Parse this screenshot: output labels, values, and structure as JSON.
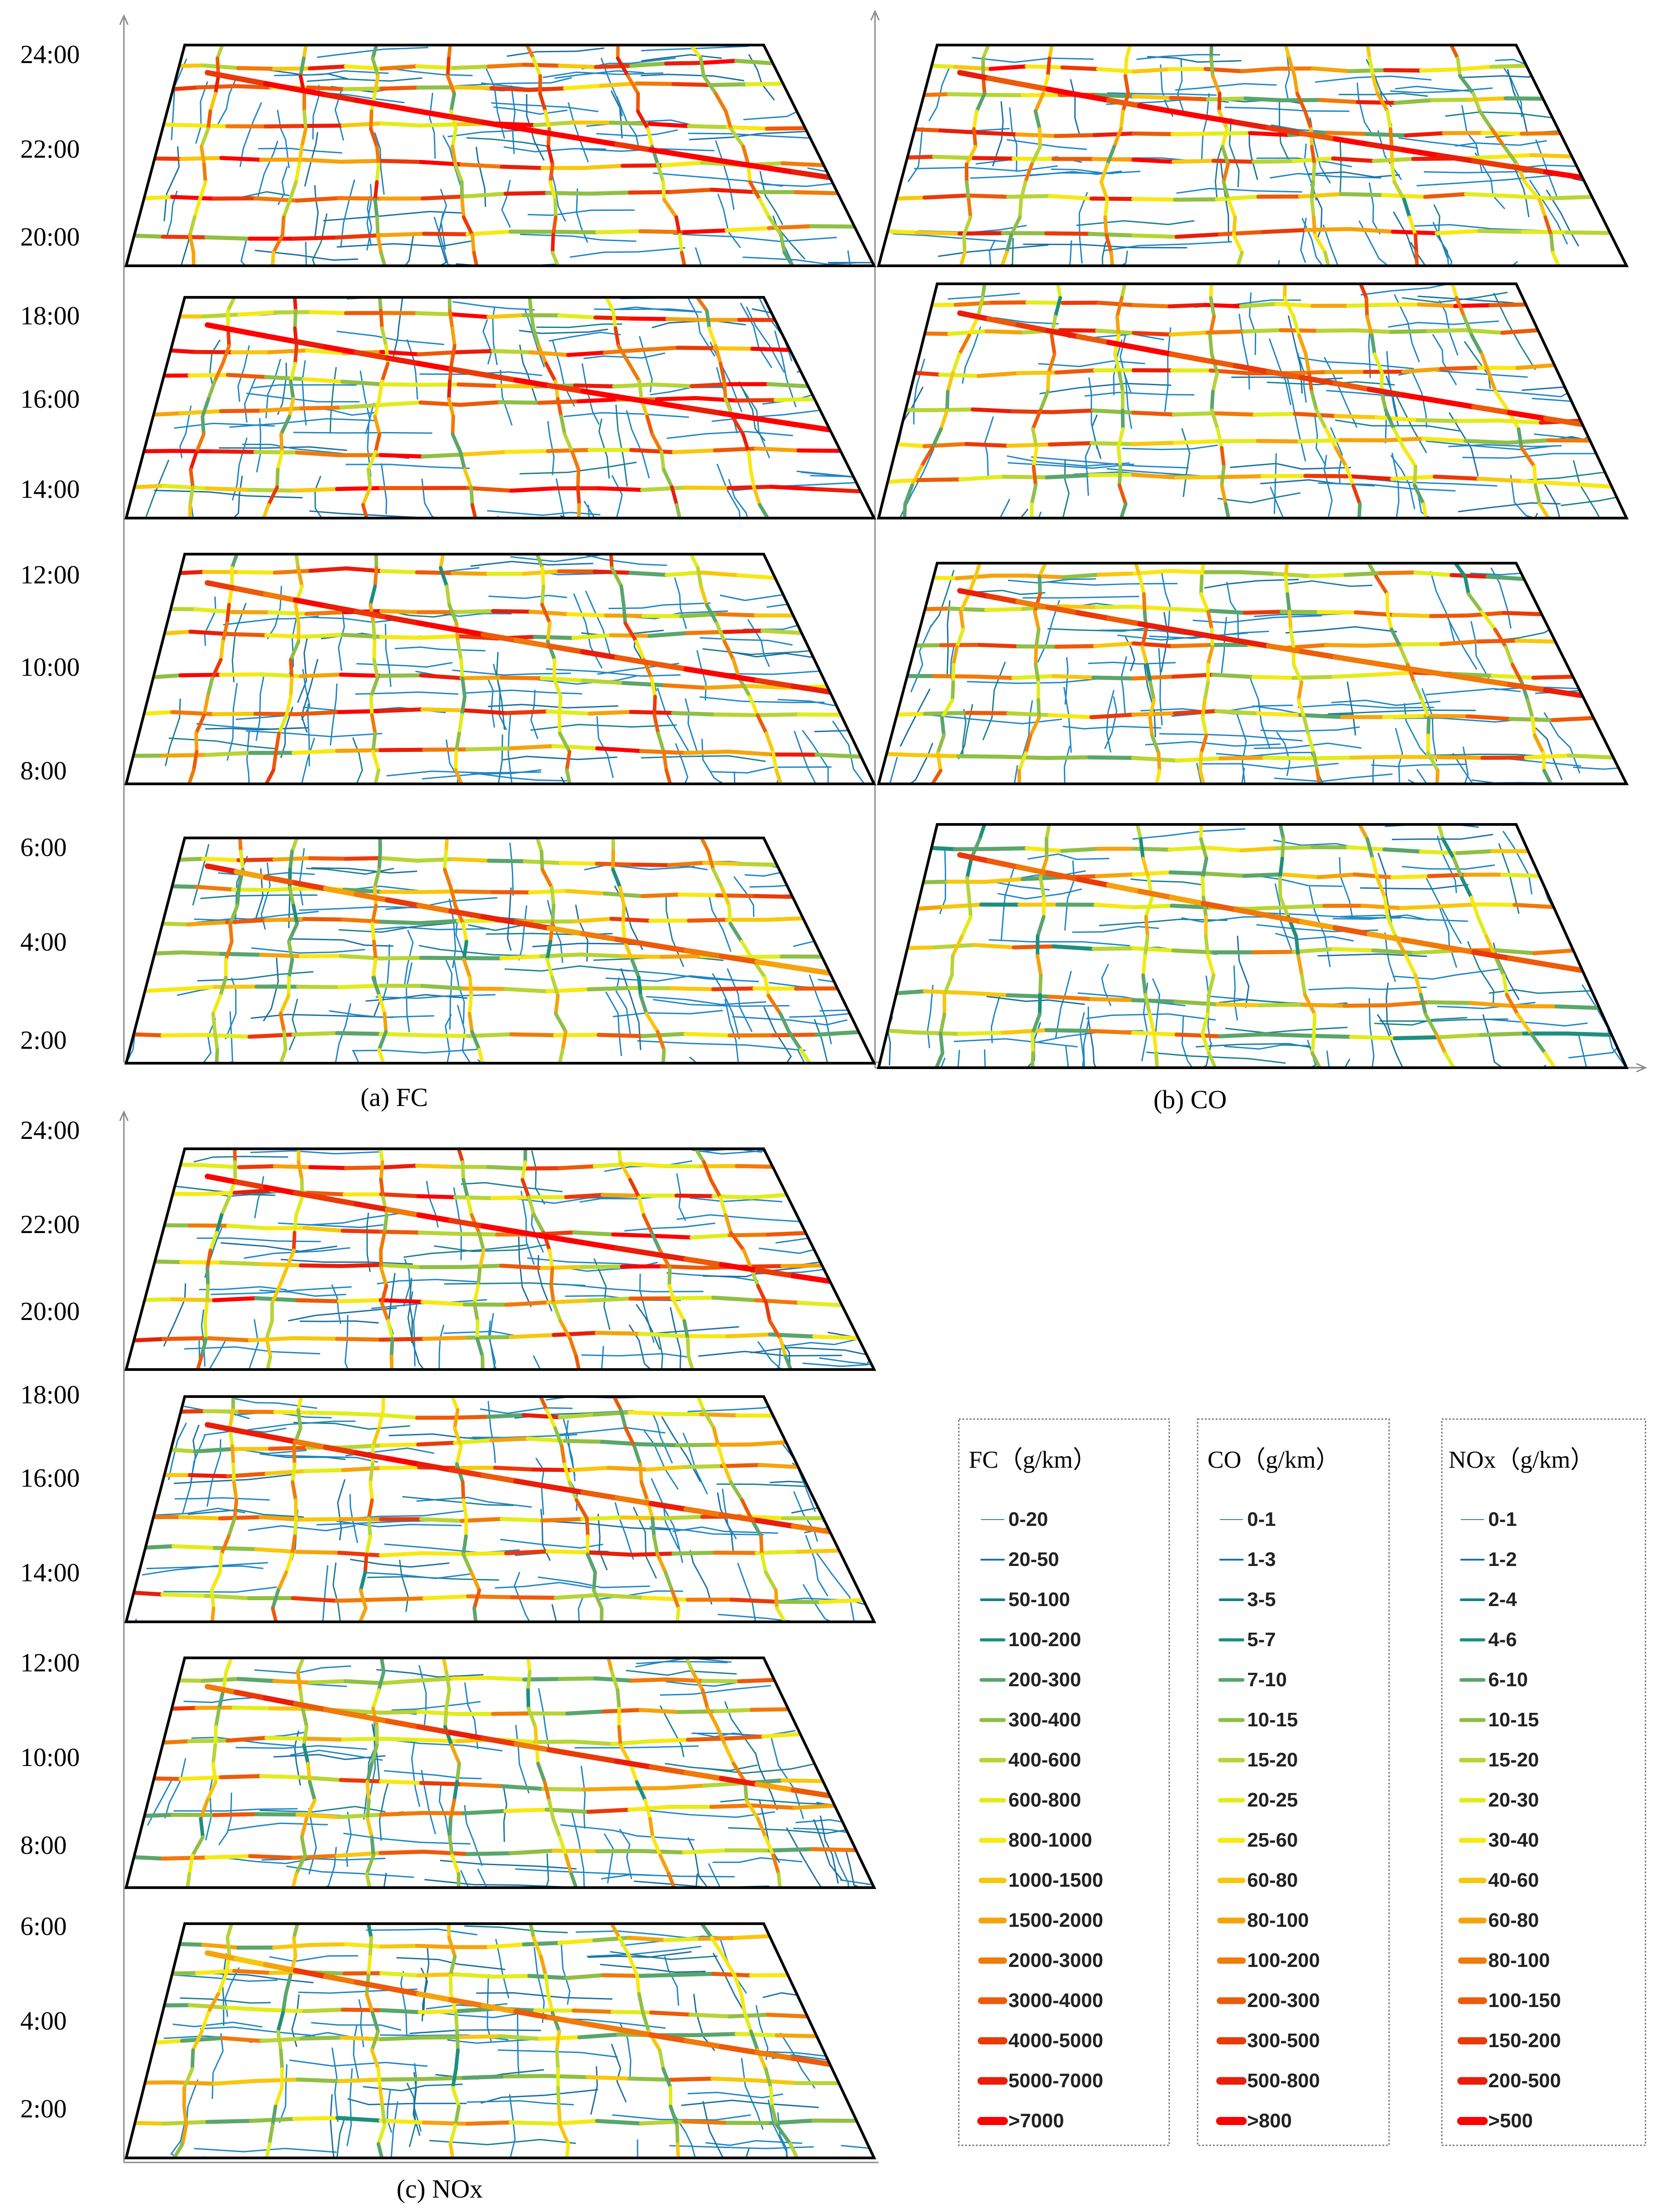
{
  "panels": [
    {
      "id": "a",
      "caption": "(a)    FC",
      "ticks": [
        "24:00",
        "22:00",
        "20:00",
        "18:00",
        "16:00",
        "14:00",
        "12:00",
        "10:00",
        "8:00",
        "6:00",
        "4:00",
        "2:00"
      ],
      "intensity": [
        0.95,
        0.9,
        0.75,
        0.55
      ]
    },
    {
      "id": "b",
      "caption": "(b)    CO",
      "ticks": [],
      "intensity": [
        0.75,
        0.7,
        0.6,
        0.45
      ]
    },
    {
      "id": "c",
      "caption": "(c)    NOx",
      "ticks": [
        "24:00",
        "22:00",
        "20:00",
        "18:00",
        "16:00",
        "14:00",
        "12:00",
        "10:00",
        "8:00",
        "6:00",
        "4:00",
        "2:00"
      ],
      "intensity": [
        0.75,
        0.7,
        0.55,
        0.45
      ]
    }
  ],
  "legends": [
    {
      "title": "FC（g/km）",
      "items": [
        "0-20",
        "20-50",
        "50-100",
        "100-200",
        "200-300",
        "300-400",
        "400-600",
        "600-800",
        "800-1000",
        "1000-1500",
        "1500-2000",
        "2000-3000",
        "3000-4000",
        "4000-5000",
        "5000-7000",
        ">7000"
      ]
    },
    {
      "title": "CO（g/km）",
      "items": [
        "0-1",
        "1-3",
        "3-5",
        "5-7",
        "7-10",
        "10-15",
        "15-20",
        "20-25",
        "25-60",
        "60-80",
        "80-100",
        "100-200",
        "200-300",
        "300-500",
        "500-800",
        ">800"
      ]
    },
    {
      "title": "NOx（g/km）",
      "items": [
        "0-1",
        "1-2",
        "2-4",
        "4-6",
        "6-10",
        "10-15",
        "15-20",
        "20-30",
        "30-40",
        "40-60",
        "60-80",
        "80-100",
        "100-150",
        "150-200",
        "200-500",
        ">500"
      ]
    }
  ],
  "colors": {
    "scale": [
      "#1f86c4",
      "#1a6fa0",
      "#1a8090",
      "#1d8f7e",
      "#5aa56c",
      "#8fbf46",
      "#b7d437",
      "#e2ec1d",
      "#f7e814",
      "#f7c70f",
      "#f5a30d",
      "#f07a0a",
      "#ec5a0a",
      "#ea3a0a",
      "#e81e0a",
      "#ff0000"
    ],
    "frame": "#000000",
    "axis": "#8a8a8a"
  }
}
